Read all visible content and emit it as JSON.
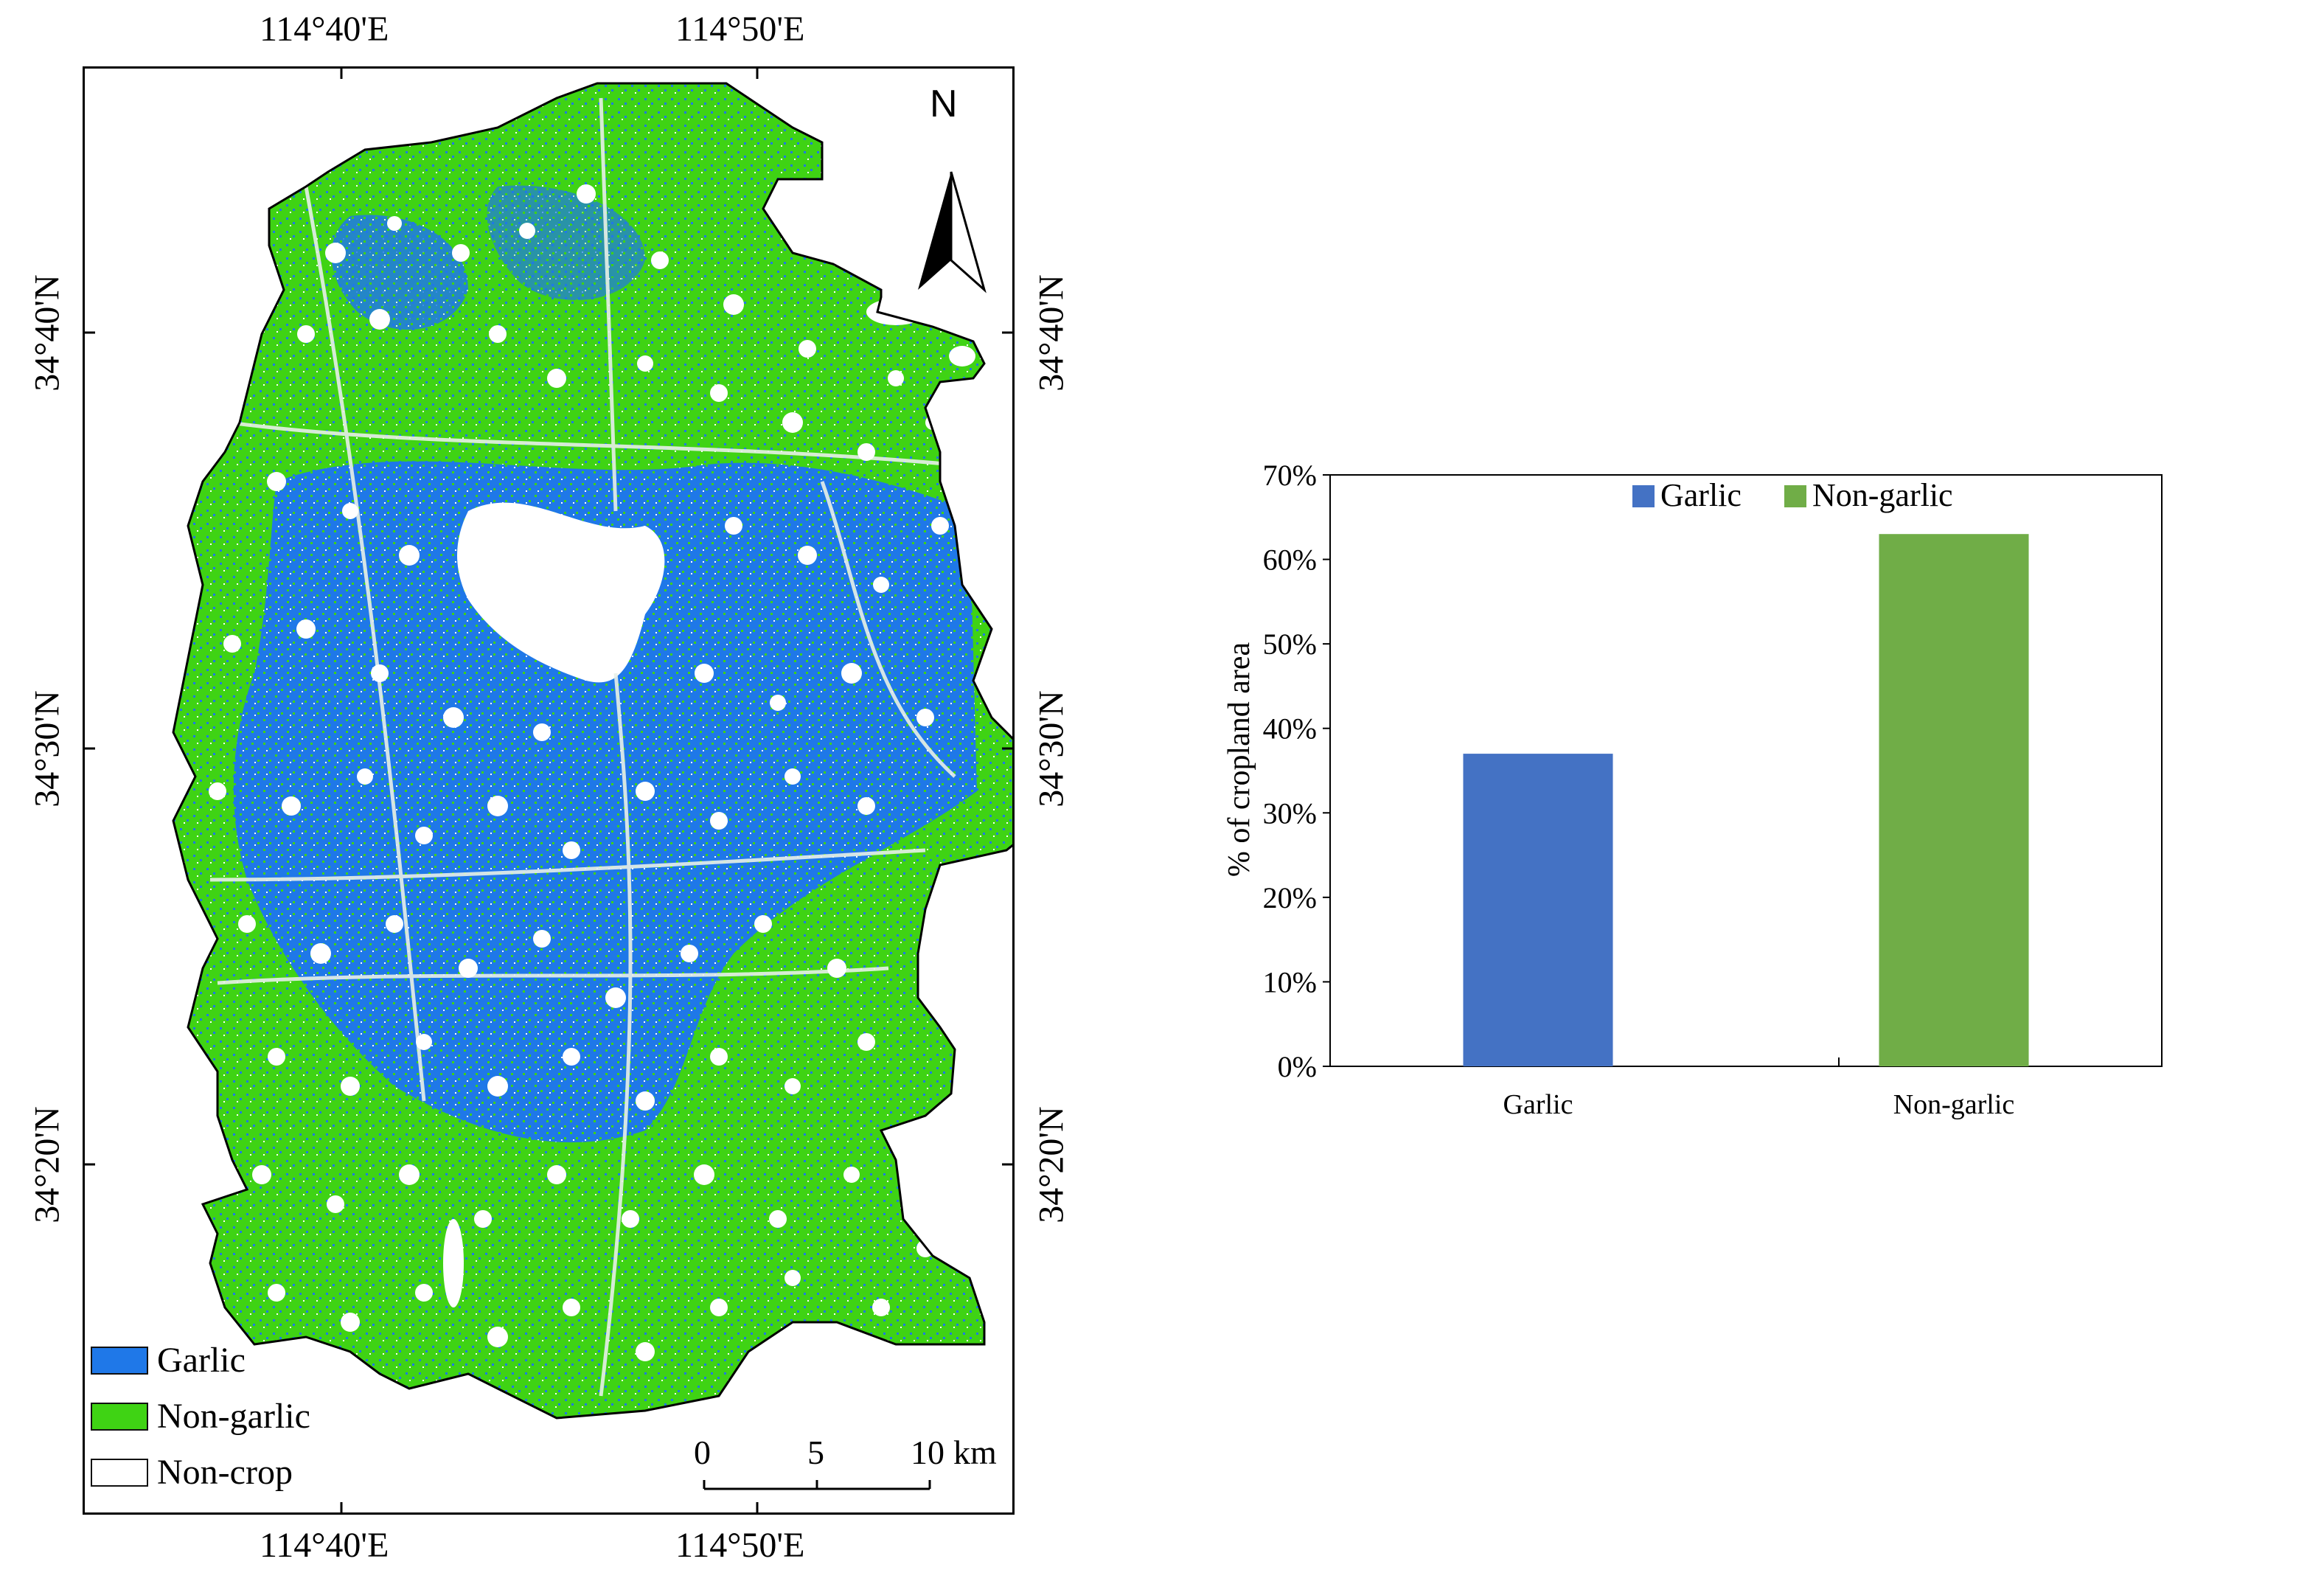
{
  "map": {
    "top_ticks": [
      "114°40'E",
      "114°50'E"
    ],
    "bottom_ticks": [
      "114°40'E",
      "114°50'E"
    ],
    "left_ticks": [
      "34°40'N",
      "34°30'N",
      "34°20'N"
    ],
    "right_ticks": [
      "34°40'N",
      "34°30'N",
      "34°20'N"
    ],
    "north_arrow": {
      "label": "N",
      "icon": "north-arrow-icon"
    },
    "legend": [
      {
        "label": "Garlic",
        "color": "#1f78e8"
      },
      {
        "label": "Non-garlic",
        "color": "#3fd314"
      },
      {
        "label": "Non-crop",
        "color": "#ffffff"
      }
    ],
    "scale_bar": {
      "ticks": [
        "0",
        "5",
        "10"
      ],
      "unit": "km"
    }
  },
  "chart_data": {
    "type": "bar",
    "categories": [
      "Garlic",
      "Non-garlic"
    ],
    "values": [
      0.37,
      0.63
    ],
    "colors": [
      "#4472c4",
      "#70ad47"
    ],
    "title": "",
    "xlabel": "",
    "ylabel": "% of cropland area",
    "ylim": [
      0,
      0.7
    ],
    "yticks": [
      "0%",
      "10%",
      "20%",
      "30%",
      "40%",
      "50%",
      "60%",
      "70%"
    ],
    "legend": [
      "Garlic",
      "Non-garlic"
    ],
    "legend_position": "top-center",
    "grid": false
  }
}
